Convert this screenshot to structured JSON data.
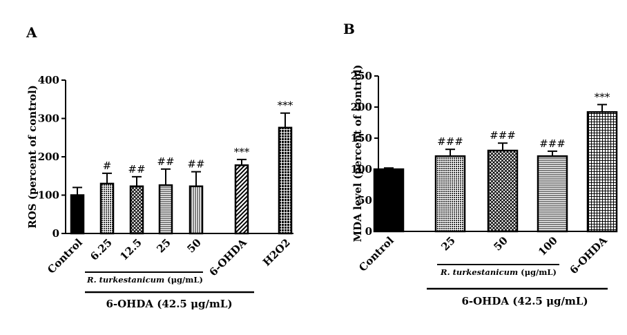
{
  "chart_data": [
    {
      "type": "bar",
      "panel_label": "A",
      "ylabel": "ROS (percent of control)",
      "ylim": [
        0,
        400
      ],
      "yticks": [
        "0",
        "100",
        "200",
        "300",
        "400"
      ],
      "categories": [
        "Control",
        "6.25",
        "12.5",
        "25",
        "50",
        "6-OHDA",
        "H2O2"
      ],
      "values": [
        100,
        130,
        123,
        126,
        123,
        178,
        276
      ],
      "errors": [
        20,
        27,
        25,
        42,
        38,
        15,
        38
      ],
      "annotations": [
        "",
        "#",
        "##",
        "##",
        "##",
        "***",
        "***"
      ],
      "patterns": [
        "solid",
        "dense-dots",
        "crosshatch",
        "horizontal",
        "vertical",
        "diagonal",
        "grid-dots"
      ],
      "group_label_extract": "R. turkestanicum (μg/mL)",
      "group_label_treatment": "6-OHDA (42.5 μg/mL)"
    },
    {
      "type": "bar",
      "panel_label": "B",
      "ylabel": "MDA level (percent of control)",
      "ylim": [
        0,
        250
      ],
      "yticks": [
        "0",
        "50",
        "100",
        "150",
        "200",
        "250"
      ],
      "categories": [
        "Control",
        "25",
        "50",
        "100",
        "6-OHDA"
      ],
      "values": [
        100,
        121,
        130,
        121,
        192
      ],
      "errors": [
        2,
        11,
        12,
        8,
        12
      ],
      "annotations": [
        "",
        "###",
        "###",
        "###",
        "***"
      ],
      "patterns": [
        "solid",
        "dense-dots",
        "crosshatch",
        "horizontal",
        "grid"
      ],
      "group_label_extract": "R. turkestanicum (μg/mL)",
      "group_label_treatment": "6-OHDA (42.5 μg/mL)"
    }
  ]
}
